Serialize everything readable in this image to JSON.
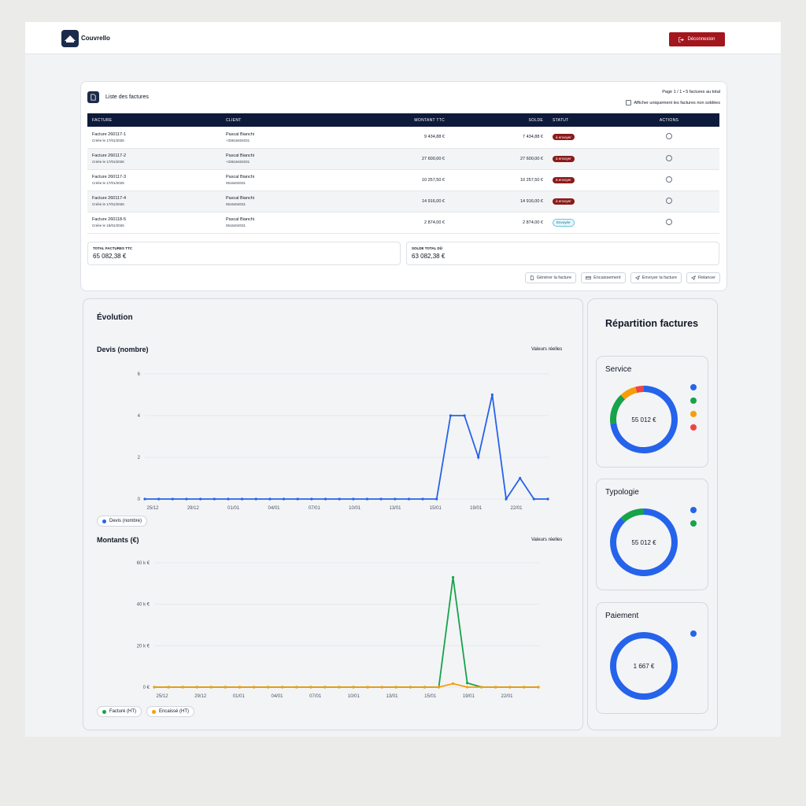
{
  "header": {
    "brand": "Couvrello",
    "logout_label": "Déconnexion"
  },
  "invoices": {
    "title": "Liste des factures",
    "page_info": "Page 1 / 1 • 5 factures au total",
    "filter_label": "Afficher uniquement les factures non soldées",
    "columns": [
      "FACTURE",
      "CLIENT",
      "MONTANT TTC",
      "SOLDE",
      "STATUT",
      "ACTIONS"
    ],
    "rows": [
      {
        "id": "Facture 260117-1",
        "created": "Créée le 17/01/2026",
        "client": "Pascal Bianchi",
        "phone": "+33616404031",
        "amount": "9 434,88 €",
        "balance": "7 434,88 €",
        "status": "à envoyer",
        "status_kind": "red"
      },
      {
        "id": "Facture 260117-2",
        "created": "Créée le 17/01/2026",
        "client": "Pascal Bianchi",
        "phone": "+33616404031",
        "amount": "27 600,00 €",
        "balance": "27 600,00 €",
        "status": "à envoyer",
        "status_kind": "red"
      },
      {
        "id": "Facture 260117-3",
        "created": "Créée le 17/01/2026",
        "client": "Pascal Bianchi",
        "phone": "0616404031",
        "amount": "10 257,50 €",
        "balance": "10 257,50 €",
        "status": "à envoyer",
        "status_kind": "red"
      },
      {
        "id": "Facture 260117-4",
        "created": "Créée le 17/01/2026",
        "client": "Pascal Bianchi",
        "phone": "0616404031",
        "amount": "14 916,00 €",
        "balance": "14 916,00 €",
        "status": "à envoyer",
        "status_kind": "red"
      },
      {
        "id": "Facture 260118-5",
        "created": "Créée le 18/01/2026",
        "client": "Pascal Bianchi",
        "phone": "0616404031",
        "amount": "2 874,00 €",
        "balance": "2 874,00 €",
        "status": "Envoyée",
        "status_kind": "blue"
      }
    ],
    "total_label": "TOTAL FACTURES TTC",
    "total_value": "65 082,38 €",
    "balance_label": "SOLDE TOTAL DÛ",
    "balance_value": "63 082,38 €",
    "actions": [
      "Générer la facture",
      "Encaissement",
      "Envoyer la facture",
      "Relancer"
    ]
  },
  "evolution": {
    "title": "Évolution",
    "devis_title": "Devis (nombre)",
    "montants_title": "Montants (€)",
    "real_values_label": "Valeurs réelles",
    "legend_devis": "Devis (nombre)",
    "legend_facture": "Facturé (HT)",
    "legend_encaisse": "Encaissé (HT)"
  },
  "repartition": {
    "title": "Répartition factures",
    "cards": [
      {
        "title": "Service",
        "center": "55 012 €"
      },
      {
        "title": "Typologie",
        "center": "55 012 €"
      },
      {
        "title": "Paiement",
        "center": "1 667 €"
      }
    ]
  },
  "colors": {
    "blue": "#2563eb",
    "green": "#16a34a",
    "orange": "#f59e0b",
    "red": "#ef4444",
    "navy": "#0e1a3a",
    "danger": "#a3161d"
  },
  "chart_data": [
    {
      "type": "line",
      "title": "Devis (nombre)",
      "ylim": [
        0,
        6
      ],
      "yticks": [
        "0",
        "2",
        "4",
        "6"
      ],
      "x_tick_labels": [
        "25/12",
        "29/12",
        "01/01",
        "04/01",
        "07/01",
        "10/01",
        "13/01",
        "15/01",
        "19/01",
        "22/01"
      ],
      "series": [
        {
          "name": "Devis (nombre)",
          "color": "#2563eb",
          "values": [
            0,
            0,
            0,
            0,
            0,
            0,
            0,
            0,
            0,
            0,
            0,
            0,
            0,
            0,
            0,
            0,
            0,
            0,
            0,
            0,
            0,
            0,
            4,
            4,
            2,
            5,
            0,
            1,
            0,
            0
          ]
        }
      ]
    },
    {
      "type": "line",
      "title": "Montants (€)",
      "ylim": [
        0,
        60000
      ],
      "yticks": [
        "0 €",
        "20 k €",
        "40 k €",
        "60 k €"
      ],
      "x_tick_labels": [
        "25/12",
        "29/12",
        "01/01",
        "04/01",
        "07/01",
        "10/01",
        "13/01",
        "15/01",
        "19/01",
        "22/01"
      ],
      "series": [
        {
          "name": "Facturé (HT)",
          "color": "#16a34a",
          "values": [
            0,
            0,
            0,
            0,
            0,
            0,
            0,
            0,
            0,
            0,
            0,
            0,
            0,
            0,
            0,
            0,
            0,
            0,
            0,
            0,
            0,
            53000,
            2000,
            0,
            0,
            0,
            0,
            0
          ]
        },
        {
          "name": "Encaissé (HT)",
          "color": "#f59e0b",
          "values": [
            0,
            0,
            0,
            0,
            0,
            0,
            0,
            0,
            0,
            0,
            0,
            0,
            0,
            0,
            0,
            0,
            0,
            0,
            0,
            0,
            0,
            1700,
            0,
            0,
            0,
            0,
            0,
            0
          ]
        }
      ]
    },
    {
      "type": "pie",
      "title": "Service",
      "values": [
        73,
        15,
        8,
        4
      ],
      "colors": [
        "#2563eb",
        "#16a34a",
        "#f59e0b",
        "#ef4444"
      ]
    },
    {
      "type": "pie",
      "title": "Typologie",
      "values": [
        88,
        12
      ],
      "colors": [
        "#2563eb",
        "#16a34a"
      ]
    },
    {
      "type": "pie",
      "title": "Paiement",
      "values": [
        100
      ],
      "colors": [
        "#2563eb"
      ]
    }
  ]
}
